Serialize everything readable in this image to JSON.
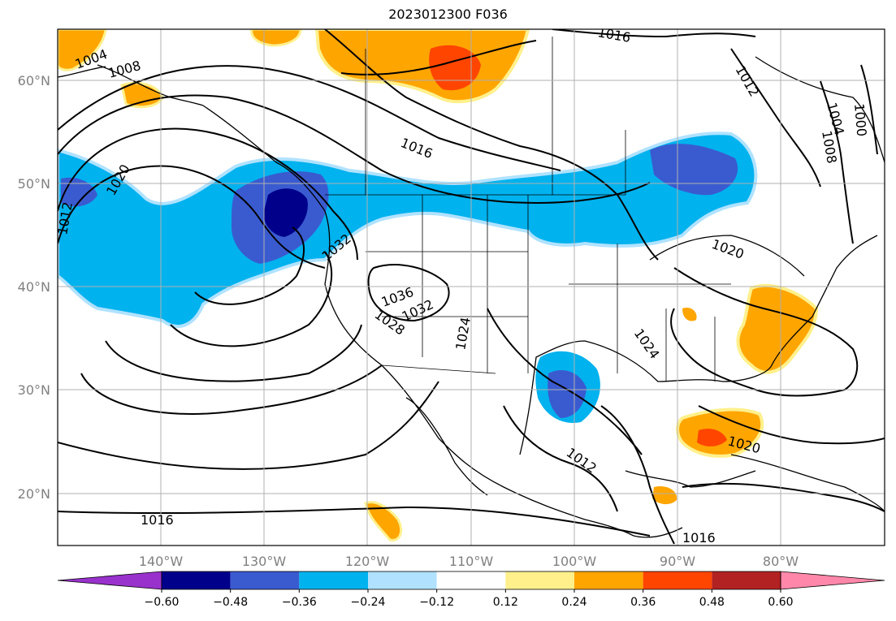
{
  "title": "2023012300 F036",
  "lat_ticks": [
    "60°N",
    "50°N",
    "40°N",
    "30°N",
    "20°N"
  ],
  "lon_ticks": [
    "140°W",
    "130°W",
    "120°W",
    "110°W",
    "100°W",
    "90°W",
    "80°W"
  ],
  "colorbar": {
    "ticks": [
      "−0.60",
      "−0.48",
      "−0.36",
      "−0.24",
      "−0.12",
      "0.12",
      "0.24",
      "0.36",
      "0.48",
      "0.60"
    ],
    "colors": [
      "#9932cc",
      "#00008b",
      "#3a5bd0",
      "#00b2ee",
      "#b0e2ff",
      "#ffffff",
      "#fff08c",
      "#ffa500",
      "#ff4500",
      "#b22222",
      "#ff88aa"
    ]
  },
  "contour_labels": [
    "1004",
    "1008",
    "1012",
    "1016",
    "1020",
    "1032",
    "1036",
    "1032",
    "1028",
    "1024",
    "1024",
    "1020",
    "1012",
    "1004",
    "1008",
    "1000",
    "1016",
    "1020",
    "1016",
    "1016",
    "1012"
  ]
}
